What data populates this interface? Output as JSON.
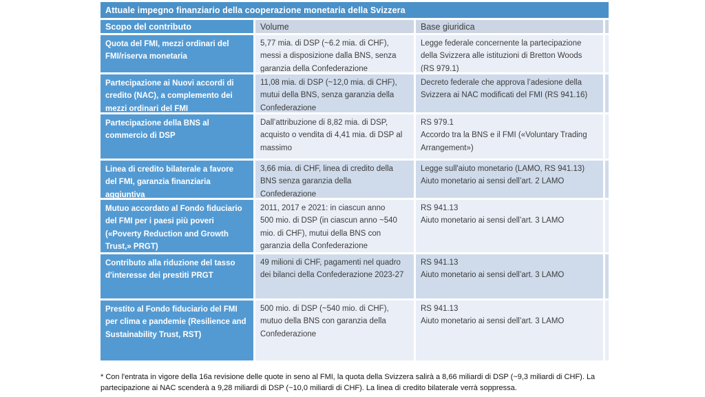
{
  "table": {
    "title": "Attuale impegno finanziario della cooperazione monetaria della Svizzera",
    "columns": {
      "scopo": "Scopo del contributo",
      "volume": "Volume",
      "base": "Base giuridica"
    },
    "colors": {
      "title_bar": "#4a91c9",
      "header_blue": "#4f97cf",
      "scopo_column": "#549ad2",
      "header_light": "#ccd5e4",
      "stripe_light": "#e9eef7",
      "stripe_dark": "#cfdbeb",
      "body_text": "#3c3c3c"
    },
    "rows": [
      {
        "scopo": "Quota del FMI, mezzi ordinari del FMI/riserva monetaria",
        "volume": "5,77 mia. di DSP (~6.2 mia. di CHF), messi a disposizione dalla BNS, senza garanzia della Confederazione",
        "base": "Legge federale concernente la partecipazione della Svizzera alle istituzioni di Bretton Woods (RS 979.1)"
      },
      {
        "scopo": "Partecipazione ai Nuovi accordi di credito (NAC), a complemento dei mezzi ordinari del FMI",
        "volume": "11,08 mia. di DSP (~12,0 mia. di CHF), mutui della BNS, senza garanzia della Confederazione",
        "base": "Decreto federale che approva l’adesione della Svizzera ai NAC modificati del FMI (RS 941.16)"
      },
      {
        "scopo": "Partecipazione della BNS al commercio di DSP",
        "volume": "Dall’attribuzione di 8,82 mia. di DSP, acquisto o vendita di 4,41 mia. di DSP al massimo",
        "base": "RS 979.1\nAccordo tra la BNS e il FMI («Voluntary Trading Arrangement»)"
      },
      {
        "scopo": "Linea di credito bilaterale a favore del FMI, garanzia finanziaria aggiuntiva",
        "volume": "3,66 mia. di CHF, linea di credito della BNS senza garanzia della Confederazione",
        "base": "Legge sull'aiuto monetario (LAMO, RS 941.13)\nAiuto monetario ai sensi dell’art. 2 LAMO"
      },
      {
        "scopo": "Mutuo accordato al Fondo fiduciario del FMI per i paesi più poveri («Poverty Reduction and Growth Trust,» PRGT)",
        "volume": "2011, 2017 e 2021: in ciascun anno\n500 mio. di DSP (in ciascun anno ~540 mio. di CHF), mutui della BNS con garanzia della Confederazione",
        "base": "RS 941.13\nAiuto monetario ai sensi dell’art. 3 LAMO"
      },
      {
        "scopo": "Contributo alla riduzione del tasso d'interesse dei prestiti PRGT",
        "volume": "49 milioni di CHF, pagamenti nel quadro dei bilanci della Confederazione 2023-27",
        "base": "RS 941.13\nAiuto monetario ai sensi dell’art. 3 LAMO"
      },
      {
        "scopo": "Prestito al Fondo fiduciario del FMI per clima e pandemie (Resilience and Sustainability Trust, RST)",
        "volume": "500 mio. di DSP (~540 mio. di CHF), mutuo della BNS con garanzia della Confederazione",
        "base": "RS 941.13\nAiuto monetario ai sensi dell’art. 3 LAMO"
      }
    ]
  },
  "footnote": "* Con l'entrata in vigore della 16a revisione delle quote in seno al FMI, la quota della Svizzera salirà a 8,66 miliardi di DSP (~9,3 miliardi di CHF). La partecipazione ai NAC scenderà a 9,28 miliardi di DSP (~10,0 miliardi di CHF). La linea di credito bilaterale verrà soppressa."
}
